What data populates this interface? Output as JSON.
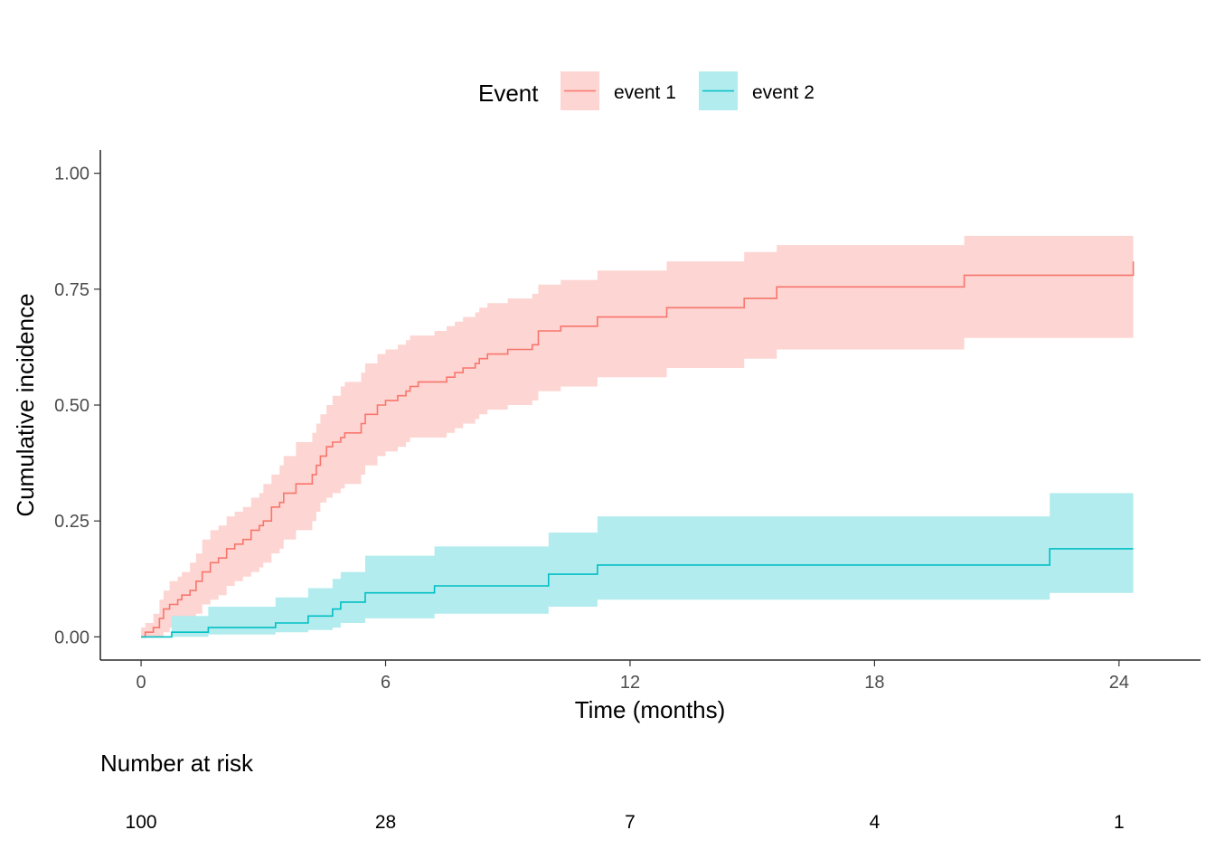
{
  "chart_data": {
    "type": "line",
    "step": true,
    "xlabel": "Time (months)",
    "ylabel": "Cumulative incidence",
    "xlim": [
      -1,
      26
    ],
    "ylim": [
      -0.05,
      1.05
    ],
    "x_ticks": [
      0,
      6,
      12,
      18,
      24
    ],
    "x_tick_labels": [
      "0",
      "6",
      "12",
      "18",
      "24"
    ],
    "y_ticks": [
      0,
      0.25,
      0.5,
      0.75,
      1
    ],
    "y_tick_labels": [
      "0.00",
      "0.25",
      "0.50",
      "0.75",
      "1.00"
    ],
    "grid": false,
    "legend": {
      "title": "Event",
      "position": "top",
      "entries": [
        "event 1",
        "event 2"
      ]
    },
    "series": [
      {
        "name": "event 1",
        "color": "#F8766D",
        "band_color": "#FDD5D2",
        "x": [
          0,
          0.1,
          0.3,
          0.45,
          0.55,
          0.7,
          0.9,
          1.0,
          1.2,
          1.35,
          1.5,
          1.7,
          1.9,
          2.1,
          2.3,
          2.5,
          2.7,
          2.9,
          3.0,
          3.2,
          3.4,
          3.5,
          3.8,
          4.2,
          4.3,
          4.4,
          4.55,
          4.7,
          4.9,
          5.0,
          5.4,
          5.5,
          5.8,
          6.0,
          6.3,
          6.5,
          6.6,
          6.8,
          7.2,
          7.5,
          7.7,
          7.9,
          8.2,
          8.3,
          8.5,
          9.0,
          9.6,
          9.75,
          10.3,
          11.2,
          12.9,
          14.8,
          15.6,
          20.2,
          24.35
        ],
        "y": [
          0.0,
          0.01,
          0.02,
          0.04,
          0.06,
          0.07,
          0.08,
          0.09,
          0.1,
          0.12,
          0.14,
          0.16,
          0.17,
          0.19,
          0.2,
          0.21,
          0.23,
          0.24,
          0.25,
          0.28,
          0.29,
          0.31,
          0.33,
          0.35,
          0.37,
          0.39,
          0.41,
          0.42,
          0.43,
          0.44,
          0.46,
          0.48,
          0.5,
          0.51,
          0.52,
          0.53,
          0.54,
          0.55,
          0.55,
          0.56,
          0.57,
          0.58,
          0.59,
          0.6,
          0.61,
          0.62,
          0.63,
          0.66,
          0.67,
          0.69,
          0.71,
          0.73,
          0.755,
          0.78,
          0.81
        ],
        "lower": [
          0.0,
          0.0,
          0.0,
          0.0,
          0.01,
          0.02,
          0.02,
          0.03,
          0.04,
          0.05,
          0.07,
          0.08,
          0.09,
          0.11,
          0.12,
          0.13,
          0.14,
          0.15,
          0.16,
          0.18,
          0.19,
          0.21,
          0.23,
          0.25,
          0.27,
          0.29,
          0.3,
          0.31,
          0.32,
          0.33,
          0.35,
          0.37,
          0.39,
          0.4,
          0.41,
          0.42,
          0.43,
          0.43,
          0.43,
          0.44,
          0.45,
          0.46,
          0.47,
          0.48,
          0.49,
          0.5,
          0.51,
          0.53,
          0.54,
          0.56,
          0.58,
          0.6,
          0.62,
          0.645,
          0.645
        ],
        "upper": [
          0.02,
          0.03,
          0.05,
          0.08,
          0.1,
          0.12,
          0.13,
          0.14,
          0.16,
          0.18,
          0.21,
          0.23,
          0.24,
          0.26,
          0.27,
          0.28,
          0.3,
          0.31,
          0.33,
          0.35,
          0.37,
          0.39,
          0.42,
          0.44,
          0.46,
          0.48,
          0.5,
          0.52,
          0.54,
          0.55,
          0.57,
          0.59,
          0.61,
          0.62,
          0.63,
          0.64,
          0.65,
          0.65,
          0.66,
          0.67,
          0.68,
          0.69,
          0.7,
          0.71,
          0.72,
          0.73,
          0.74,
          0.76,
          0.77,
          0.79,
          0.81,
          0.83,
          0.845,
          0.865,
          0.865
        ]
      },
      {
        "name": "event 2",
        "color": "#00BFC4",
        "band_color": "#B2ECEE",
        "x": [
          0,
          0.75,
          1.65,
          3.3,
          4.1,
          4.7,
          4.9,
          5.5,
          7.2,
          10.0,
          11.2,
          22.3,
          24.35
        ],
        "y": [
          0.0,
          0.01,
          0.02,
          0.03,
          0.045,
          0.06,
          0.075,
          0.095,
          0.11,
          0.135,
          0.155,
          0.19,
          0.19
        ],
        "lower": [
          0.0,
          0.0,
          0.005,
          0.01,
          0.015,
          0.02,
          0.03,
          0.04,
          0.05,
          0.065,
          0.08,
          0.095,
          0.095
        ],
        "upper": [
          0.0,
          0.045,
          0.065,
          0.085,
          0.105,
          0.125,
          0.14,
          0.175,
          0.195,
          0.225,
          0.26,
          0.31,
          0.31
        ]
      }
    ],
    "risk_table": {
      "title": "Number at risk",
      "times": [
        0,
        6,
        12,
        18,
        24
      ],
      "values": [
        "100",
        "28",
        "7",
        "4",
        "1"
      ]
    }
  }
}
